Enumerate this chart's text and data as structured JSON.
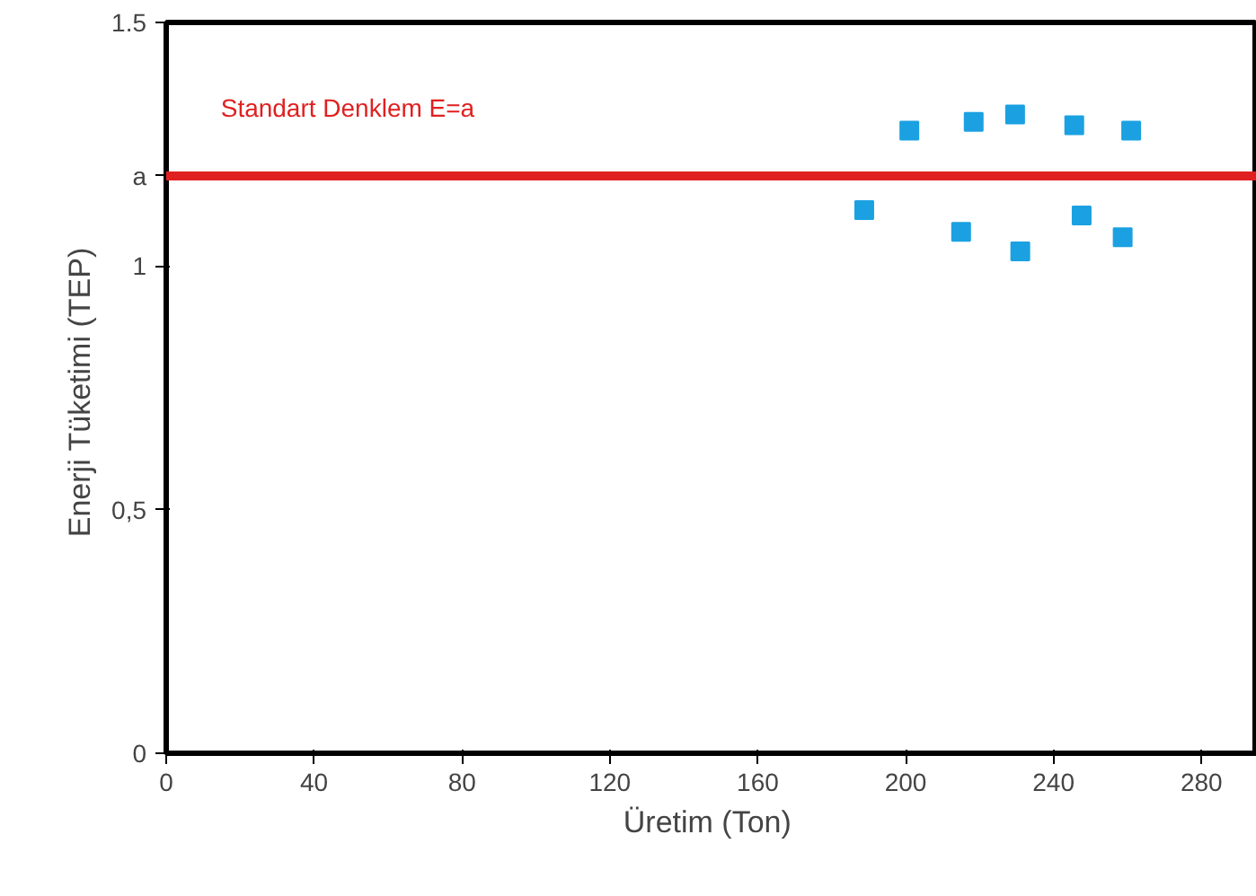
{
  "chart_data": {
    "type": "scatter",
    "xlabel": "Üretim  (Ton)",
    "ylabel": "Enerji Tüketimi  (TEP)",
    "x": [
      188.8,
      201,
      215,
      218.4,
      229.6,
      231,
      245.6,
      247.6,
      258.7,
      261
    ],
    "series": [
      {
        "color": "#1ba1e2",
        "values": [
          1.115,
          1.278,
          1.07,
          1.296,
          1.311,
          1.03,
          1.289,
          1.104,
          1.059,
          1.278
        ]
      }
    ],
    "marker": "square",
    "xlim": [
      0,
      295
    ],
    "ylim": [
      0,
      1.5
    ],
    "xticks": [
      0,
      40,
      80,
      120,
      160,
      200,
      240,
      280
    ],
    "yticks": [
      0,
      {
        "value": 0.5,
        "label": "0,5"
      },
      1,
      {
        "value": 1.185,
        "label": "a"
      },
      1.5
    ],
    "ref_lines": [
      {
        "axis": "y",
        "value": 1.185,
        "label": "Standart Denklem E=a",
        "color": "#e02020"
      }
    ],
    "grid": false
  }
}
